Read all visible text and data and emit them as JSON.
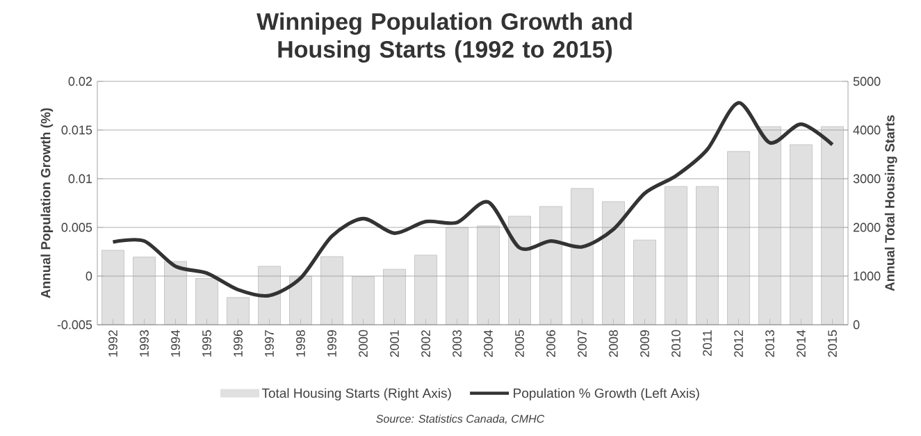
{
  "chart_data": {
    "type": "bar",
    "title": "Winnipeg Population Growth and Housing Starts (1992 to 2015)",
    "ylabel": "Annual Population Growth (%)",
    "y2label": "Annual Total Housing Starts",
    "categories": [
      "1992",
      "1993",
      "1994",
      "1995",
      "1996",
      "1997",
      "1998",
      "1999",
      "2000",
      "2001",
      "2002",
      "2003",
      "2004",
      "2005",
      "2006",
      "2007",
      "2008",
      "2009",
      "2010",
      "2011",
      "2012",
      "2013",
      "2014",
      "2015"
    ],
    "series": [
      {
        "name": "Total Housing Starts (Right Axis)",
        "axis": "y2",
        "color": "#e0e0e0",
        "values": [
          1530,
          1390,
          1300,
          950,
          560,
          1200,
          1000,
          1400,
          990,
          1140,
          1430,
          2000,
          2030,
          2230,
          2430,
          2800,
          2530,
          1740,
          2840,
          2840,
          3560,
          4070,
          3700,
          4070
        ]
      },
      {
        "name": "Population % Growth (Left Axis)",
        "type": "line",
        "color": "#333333",
        "values": [
          0.0035,
          0.0036,
          0.001,
          0.0003,
          -0.0014,
          -0.002,
          -0.0002,
          0.0041,
          0.0059,
          0.0044,
          0.0056,
          0.0055,
          0.0076,
          0.0029,
          0.0036,
          0.003,
          0.0048,
          0.0085,
          0.0103,
          0.013,
          0.0178,
          0.0137,
          0.0156,
          0.0135
        ]
      }
    ],
    "ylim": [
      -0.005,
      0.02
    ],
    "yticks": [
      -0.005,
      0,
      0.005,
      0.01,
      0.015,
      0.02
    ],
    "y2lim": [
      0,
      5000
    ],
    "y2ticks": [
      0,
      1000,
      2000,
      3000,
      4000,
      5000
    ],
    "grid": "y",
    "legend": "bottom",
    "marker": "none",
    "line_style": "solid",
    "annotations": [
      "Source: Statistics Canada, CMHC"
    ]
  }
}
